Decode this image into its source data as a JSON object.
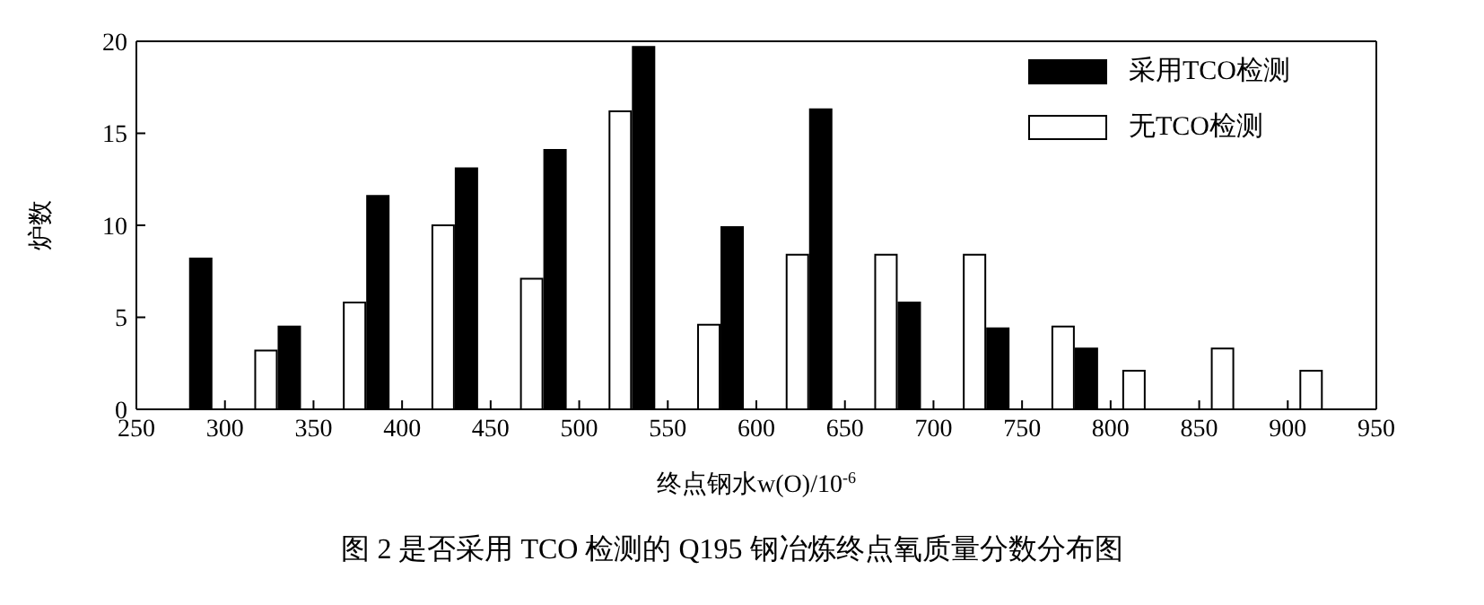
{
  "chart_data": {
    "type": "bar",
    "title": "图 2  是否采用 TCO 检测的 Q195 钢冶炼终点氧质量分数分布图",
    "xlabel": "终点钢水w(O)/10$^{-6}$",
    "ylabel": "炉数",
    "x": [
      280,
      330,
      380,
      430,
      480,
      530,
      580,
      630,
      680,
      730,
      780,
      820,
      870,
      920
    ],
    "series": [
      {
        "name": "采用TCO检测",
        "color": "#000000",
        "values": [
          8.2,
          4.5,
          11.6,
          13.1,
          14.1,
          19.7,
          9.9,
          16.3,
          5.8,
          4.4,
          3.3,
          null,
          null,
          null
        ]
      },
      {
        "name": "无TCO检测",
        "color": "#ffffff",
        "values": [
          null,
          3.2,
          5.8,
          10.0,
          7.1,
          16.2,
          4.6,
          8.4,
          8.4,
          8.4,
          4.5,
          2.1,
          3.3,
          2.1
        ]
      }
    ],
    "xlim": [
      250,
      950
    ],
    "xticks": [
      250,
      300,
      350,
      400,
      450,
      500,
      550,
      600,
      650,
      700,
      750,
      800,
      850,
      900,
      950
    ],
    "ylim": [
      0,
      20
    ],
    "yticks": [
      0,
      5,
      10,
      15,
      20
    ],
    "legend": "top right"
  }
}
